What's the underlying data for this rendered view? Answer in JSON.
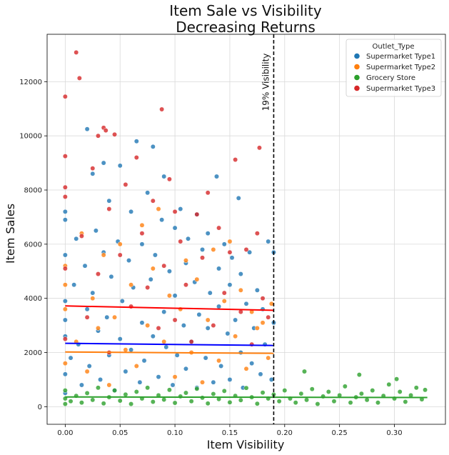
{
  "chart_data": {
    "type": "scatter",
    "title": [
      "Item Sale vs Visibility",
      "Decreasing Returns"
    ],
    "xlabel": "Item Visibility",
    "ylabel": "Item Sales",
    "xlim": [
      -0.0165,
      0.3465
    ],
    "ylim": [
      -650,
      13750
    ],
    "x_ticks": [
      0.0,
      0.05,
      0.1,
      0.15,
      0.2,
      0.25,
      0.3
    ],
    "x_tick_labels": [
      "0.00",
      "0.05",
      "0.10",
      "0.15",
      "0.20",
      "0.25",
      "0.30"
    ],
    "y_ticks": [
      0,
      2000,
      4000,
      6000,
      8000,
      10000,
      12000
    ],
    "y_tick_labels": [
      "0",
      "2000",
      "4000",
      "6000",
      "8000",
      "10000",
      "12000"
    ],
    "grid": true,
    "legend": {
      "title": "Outlet_Type",
      "placement": "top-right",
      "entries": [
        "Supermarket Type1",
        "Supermarket Type2",
        "Grocery Store",
        "Supermarket Type3"
      ]
    },
    "series": [
      {
        "name": "Supermarket Type1",
        "color": "#1f77b4",
        "regression": {
          "x": [
            0.0,
            0.19
          ],
          "y": [
            2340,
            2260
          ],
          "color": "#0000ff"
        },
        "points": [
          [
            0.0,
            1200
          ],
          [
            0.0,
            2600
          ],
          [
            0.0,
            3900
          ],
          [
            0.0,
            5600
          ],
          [
            0.0,
            6900
          ],
          [
            0.0,
            500
          ],
          [
            0.0,
            3200
          ],
          [
            0.0,
            7200
          ],
          [
            0.005,
            1800
          ],
          [
            0.008,
            4500
          ],
          [
            0.01,
            6200
          ],
          [
            0.012,
            2300
          ],
          [
            0.015,
            800
          ],
          [
            0.018,
            5200
          ],
          [
            0.02,
            3600
          ],
          [
            0.02,
            10250
          ],
          [
            0.022,
            1500
          ],
          [
            0.025,
            8600
          ],
          [
            0.025,
            4200
          ],
          [
            0.028,
            6500
          ],
          [
            0.03,
            2800
          ],
          [
            0.032,
            1000
          ],
          [
            0.035,
            9000
          ],
          [
            0.035,
            5700
          ],
          [
            0.038,
            3300
          ],
          [
            0.04,
            7600
          ],
          [
            0.04,
            1900
          ],
          [
            0.042,
            4800
          ],
          [
            0.045,
            600
          ],
          [
            0.048,
            6100
          ],
          [
            0.05,
            2500
          ],
          [
            0.05,
            8900
          ],
          [
            0.052,
            3900
          ],
          [
            0.055,
            1300
          ],
          [
            0.058,
            5400
          ],
          [
            0.06,
            7200
          ],
          [
            0.06,
            2100
          ],
          [
            0.062,
            4400
          ],
          [
            0.065,
            9800
          ],
          [
            0.068,
            900
          ],
          [
            0.07,
            6000
          ],
          [
            0.07,
            3100
          ],
          [
            0.072,
            1700
          ],
          [
            0.075,
            7900
          ],
          [
            0.078,
            4700
          ],
          [
            0.08,
            2600
          ],
          [
            0.08,
            9600
          ],
          [
            0.082,
            5600
          ],
          [
            0.085,
            1100
          ],
          [
            0.088,
            6900
          ],
          [
            0.09,
            3500
          ],
          [
            0.09,
            8500
          ],
          [
            0.092,
            2200
          ],
          [
            0.095,
            5000
          ],
          [
            0.098,
            800
          ],
          [
            0.1,
            6600
          ],
          [
            0.1,
            4100
          ],
          [
            0.102,
            1900
          ],
          [
            0.105,
            7300
          ],
          [
            0.108,
            3000
          ],
          [
            0.11,
            5300
          ],
          [
            0.11,
            1400
          ],
          [
            0.112,
            6200
          ],
          [
            0.115,
            2400
          ],
          [
            0.118,
            4600
          ],
          [
            0.12,
            700
          ],
          [
            0.12,
            7100
          ],
          [
            0.122,
            3400
          ],
          [
            0.125,
            5800
          ],
          [
            0.128,
            1800
          ],
          [
            0.13,
            6400
          ],
          [
            0.13,
            2900
          ],
          [
            0.132,
            4200
          ],
          [
            0.135,
            900
          ],
          [
            0.138,
            8500
          ],
          [
            0.14,
            3700
          ],
          [
            0.14,
            5100
          ],
          [
            0.142,
            1500
          ],
          [
            0.145,
            6000
          ],
          [
            0.148,
            2700
          ],
          [
            0.15,
            4500
          ],
          [
            0.15,
            1000
          ],
          [
            0.152,
            5500
          ],
          [
            0.155,
            3200
          ],
          [
            0.158,
            7700
          ],
          [
            0.16,
            2000
          ],
          [
            0.16,
            4900
          ],
          [
            0.162,
            700
          ],
          [
            0.165,
            3800
          ],
          [
            0.168,
            5700
          ],
          [
            0.17,
            1600
          ],
          [
            0.172,
            2900
          ],
          [
            0.175,
            4300
          ],
          [
            0.178,
            1200
          ],
          [
            0.18,
            3600
          ],
          [
            0.182,
            2300
          ],
          [
            0.185,
            6100
          ],
          [
            0.188,
            1000
          ],
          [
            0.19,
            3100
          ],
          [
            0.19,
            5700
          ]
        ]
      },
      {
        "name": "Supermarket Type2",
        "color": "#ff7f0e",
        "regression": {
          "x": [
            0.0,
            0.19
          ],
          "y": [
            2020,
            1970
          ],
          "color": "#ff7f0e"
        },
        "points": [
          [
            0.0,
            1600
          ],
          [
            0.0,
            3600
          ],
          [
            0.0,
            5200
          ],
          [
            0.0,
            4500
          ],
          [
            0.01,
            2400
          ],
          [
            0.015,
            6400
          ],
          [
            0.02,
            1300
          ],
          [
            0.025,
            4000
          ],
          [
            0.03,
            2900
          ],
          [
            0.035,
            5600
          ],
          [
            0.04,
            800
          ],
          [
            0.045,
            3300
          ],
          [
            0.05,
            6000
          ],
          [
            0.055,
            2100
          ],
          [
            0.06,
            4500
          ],
          [
            0.065,
            1500
          ],
          [
            0.07,
            6700
          ],
          [
            0.075,
            3000
          ],
          [
            0.08,
            5100
          ],
          [
            0.085,
            7300
          ],
          [
            0.09,
            2400
          ],
          [
            0.095,
            4100
          ],
          [
            0.1,
            1100
          ],
          [
            0.105,
            3600
          ],
          [
            0.11,
            5400
          ],
          [
            0.115,
            2000
          ],
          [
            0.12,
            4700
          ],
          [
            0.125,
            900
          ],
          [
            0.13,
            3200
          ],
          [
            0.135,
            5800
          ],
          [
            0.14,
            1700
          ],
          [
            0.145,
            3900
          ],
          [
            0.15,
            6100
          ],
          [
            0.155,
            2600
          ],
          [
            0.16,
            4300
          ],
          [
            0.165,
            1400
          ],
          [
            0.17,
            3500
          ],
          [
            0.175,
            2900
          ],
          [
            0.18,
            3100
          ],
          [
            0.185,
            1800
          ],
          [
            0.188,
            3800
          ]
        ]
      },
      {
        "name": "Grocery Store",
        "color": "#2ca02c",
        "regression": {
          "x": [
            0.0,
            0.33
          ],
          "y": [
            360,
            340
          ],
          "color": "#2ca02c"
        },
        "points": [
          [
            0.0,
            100
          ],
          [
            0.0,
            300
          ],
          [
            0.0,
            600
          ],
          [
            0.005,
            200
          ],
          [
            0.01,
            400
          ],
          [
            0.015,
            150
          ],
          [
            0.02,
            500
          ],
          [
            0.025,
            250
          ],
          [
            0.03,
            700
          ],
          [
            0.035,
            120
          ],
          [
            0.04,
            350
          ],
          [
            0.045,
            600
          ],
          [
            0.05,
            220
          ],
          [
            0.055,
            450
          ],
          [
            0.06,
            100
          ],
          [
            0.065,
            550
          ],
          [
            0.07,
            300
          ],
          [
            0.075,
            700
          ],
          [
            0.08,
            180
          ],
          [
            0.085,
            420
          ],
          [
            0.09,
            260
          ],
          [
            0.095,
            620
          ],
          [
            0.1,
            140
          ],
          [
            0.105,
            380
          ],
          [
            0.11,
            510
          ],
          [
            0.115,
            200
          ],
          [
            0.12,
            660
          ],
          [
            0.125,
            330
          ],
          [
            0.13,
            120
          ],
          [
            0.135,
            470
          ],
          [
            0.14,
            280
          ],
          [
            0.145,
            580
          ],
          [
            0.15,
            160
          ],
          [
            0.155,
            400
          ],
          [
            0.16,
            240
          ],
          [
            0.165,
            690
          ],
          [
            0.17,
            350
          ],
          [
            0.175,
            110
          ],
          [
            0.18,
            520
          ],
          [
            0.185,
            300
          ],
          [
            0.19,
            450
          ],
          [
            0.195,
            200
          ],
          [
            0.2,
            600
          ],
          [
            0.205,
            300
          ],
          [
            0.21,
            150
          ],
          [
            0.215,
            480
          ],
          [
            0.218,
            1300
          ],
          [
            0.22,
            250
          ],
          [
            0.225,
            650
          ],
          [
            0.23,
            100
          ],
          [
            0.235,
            380
          ],
          [
            0.24,
            550
          ],
          [
            0.245,
            200
          ],
          [
            0.25,
            420
          ],
          [
            0.255,
            750
          ],
          [
            0.26,
            150
          ],
          [
            0.265,
            350
          ],
          [
            0.268,
            1180
          ],
          [
            0.27,
            480
          ],
          [
            0.275,
            250
          ],
          [
            0.28,
            600
          ],
          [
            0.285,
            150
          ],
          [
            0.29,
            400
          ],
          [
            0.295,
            820
          ],
          [
            0.3,
            300
          ],
          [
            0.302,
            1020
          ],
          [
            0.305,
            550
          ],
          [
            0.31,
            180
          ],
          [
            0.315,
            420
          ],
          [
            0.32,
            700
          ],
          [
            0.325,
            270
          ],
          [
            0.328,
            620
          ]
        ]
      },
      {
        "name": "Supermarket Type3",
        "color": "#d62728",
        "regression": {
          "x": [
            0.0,
            0.19
          ],
          "y": [
            3720,
            3560
          ],
          "color": "#ff0000"
        },
        "points": [
          [
            0.0,
            11450
          ],
          [
            0.0,
            9250
          ],
          [
            0.0,
            8100
          ],
          [
            0.0,
            7750
          ],
          [
            0.0,
            5100
          ],
          [
            0.0,
            2500
          ],
          [
            0.01,
            13080
          ],
          [
            0.013,
            12130
          ],
          [
            0.015,
            6300
          ],
          [
            0.02,
            3300
          ],
          [
            0.025,
            8800
          ],
          [
            0.03,
            10000
          ],
          [
            0.03,
            4900
          ],
          [
            0.035,
            10300
          ],
          [
            0.037,
            10200
          ],
          [
            0.04,
            7300
          ],
          [
            0.04,
            2000
          ],
          [
            0.045,
            10050
          ],
          [
            0.05,
            5600
          ],
          [
            0.055,
            8200
          ],
          [
            0.06,
            3700
          ],
          [
            0.065,
            9200
          ],
          [
            0.07,
            6400
          ],
          [
            0.075,
            4400
          ],
          [
            0.08,
            7600
          ],
          [
            0.085,
            2900
          ],
          [
            0.088,
            10980
          ],
          [
            0.09,
            5200
          ],
          [
            0.095,
            8400
          ],
          [
            0.1,
            7200
          ],
          [
            0.1,
            3200
          ],
          [
            0.105,
            6100
          ],
          [
            0.11,
            4500
          ],
          [
            0.115,
            2400
          ],
          [
            0.12,
            7100
          ],
          [
            0.125,
            5500
          ],
          [
            0.13,
            7900
          ],
          [
            0.135,
            3000
          ],
          [
            0.14,
            6600
          ],
          [
            0.145,
            4200
          ],
          [
            0.15,
            5700
          ],
          [
            0.155,
            9120
          ],
          [
            0.16,
            3500
          ],
          [
            0.165,
            5800
          ],
          [
            0.17,
            2300
          ],
          [
            0.175,
            6400
          ],
          [
            0.177,
            9560
          ],
          [
            0.18,
            4000
          ],
          [
            0.185,
            3300
          ]
        ]
      }
    ],
    "annotations": [
      {
        "type": "vline",
        "x": 0.19,
        "style": "dashed",
        "color": "#000000",
        "label": "19% Visibility"
      }
    ]
  }
}
